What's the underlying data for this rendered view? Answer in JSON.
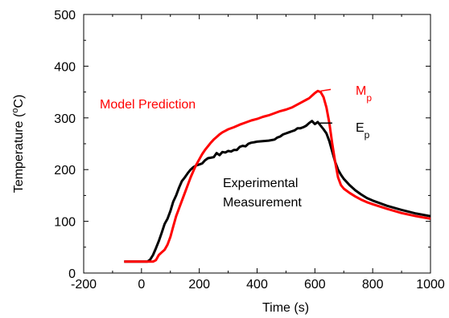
{
  "chart_data": {
    "type": "line",
    "title": "",
    "xlabel": "Time (s)",
    "ylabel_parts": {
      "prefix": "Temperature (",
      "sup": "o",
      "suffix": "C)"
    },
    "xlim": [
      -200,
      1000
    ],
    "ylim": [
      0,
      500
    ],
    "x_ticks": [
      -200,
      0,
      200,
      400,
      600,
      800,
      1000
    ],
    "y_ticks": [
      0,
      100,
      200,
      300,
      400,
      500
    ],
    "grid": false,
    "series": [
      {
        "name": "Experimental Measurement",
        "color": "#000000",
        "points": [
          [
            -60,
            22
          ],
          [
            0,
            22
          ],
          [
            20,
            22
          ],
          [
            30,
            26
          ],
          [
            40,
            35
          ],
          [
            50,
            48
          ],
          [
            60,
            62
          ],
          [
            70,
            78
          ],
          [
            80,
            95
          ],
          [
            90,
            105
          ],
          [
            100,
            120
          ],
          [
            110,
            138
          ],
          [
            120,
            150
          ],
          [
            130,
            165
          ],
          [
            140,
            178
          ],
          [
            150,
            185
          ],
          [
            160,
            193
          ],
          [
            170,
            200
          ],
          [
            180,
            205
          ],
          [
            190,
            208
          ],
          [
            200,
            210
          ],
          [
            210,
            212
          ],
          [
            220,
            218
          ],
          [
            230,
            222
          ],
          [
            240,
            223
          ],
          [
            250,
            224
          ],
          [
            260,
            232
          ],
          [
            270,
            228
          ],
          [
            280,
            234
          ],
          [
            290,
            233
          ],
          [
            300,
            236
          ],
          [
            310,
            235
          ],
          [
            320,
            238
          ],
          [
            330,
            238
          ],
          [
            340,
            244
          ],
          [
            350,
            246
          ],
          [
            360,
            245
          ],
          [
            370,
            250
          ],
          [
            380,
            252
          ],
          [
            390,
            253
          ],
          [
            400,
            254
          ],
          [
            420,
            255
          ],
          [
            440,
            256
          ],
          [
            460,
            258
          ],
          [
            470,
            262
          ],
          [
            480,
            264
          ],
          [
            490,
            268
          ],
          [
            500,
            270
          ],
          [
            510,
            272
          ],
          [
            520,
            274
          ],
          [
            530,
            276
          ],
          [
            540,
            280
          ],
          [
            550,
            280
          ],
          [
            560,
            282
          ],
          [
            570,
            285
          ],
          [
            580,
            290
          ],
          [
            590,
            294
          ],
          [
            600,
            288
          ],
          [
            610,
            292
          ],
          [
            620,
            285
          ],
          [
            630,
            278
          ],
          [
            640,
            270
          ],
          [
            650,
            255
          ],
          [
            660,
            235
          ],
          [
            670,
            215
          ],
          [
            680,
            200
          ],
          [
            690,
            190
          ],
          [
            700,
            182
          ],
          [
            720,
            170
          ],
          [
            740,
            160
          ],
          [
            760,
            152
          ],
          [
            780,
            145
          ],
          [
            800,
            140
          ],
          [
            850,
            130
          ],
          [
            900,
            122
          ],
          [
            950,
            115
          ],
          [
            1000,
            110
          ]
        ]
      },
      {
        "name": "Model Prediction",
        "color": "#ff0000",
        "points": [
          [
            -60,
            22
          ],
          [
            0,
            22
          ],
          [
            40,
            22
          ],
          [
            50,
            25
          ],
          [
            60,
            35
          ],
          [
            70,
            40
          ],
          [
            80,
            45
          ],
          [
            90,
            55
          ],
          [
            100,
            70
          ],
          [
            110,
            90
          ],
          [
            120,
            110
          ],
          [
            130,
            125
          ],
          [
            140,
            140
          ],
          [
            150,
            155
          ],
          [
            160,
            170
          ],
          [
            170,
            185
          ],
          [
            180,
            198
          ],
          [
            190,
            210
          ],
          [
            200,
            220
          ],
          [
            210,
            230
          ],
          [
            220,
            238
          ],
          [
            230,
            245
          ],
          [
            240,
            252
          ],
          [
            250,
            258
          ],
          [
            260,
            263
          ],
          [
            270,
            268
          ],
          [
            280,
            272
          ],
          [
            290,
            275
          ],
          [
            300,
            278
          ],
          [
            320,
            282
          ],
          [
            340,
            287
          ],
          [
            360,
            291
          ],
          [
            380,
            295
          ],
          [
            400,
            298
          ],
          [
            420,
            302
          ],
          [
            440,
            305
          ],
          [
            460,
            309
          ],
          [
            480,
            313
          ],
          [
            500,
            316
          ],
          [
            520,
            320
          ],
          [
            540,
            326
          ],
          [
            560,
            332
          ],
          [
            580,
            338
          ],
          [
            590,
            343
          ],
          [
            600,
            348
          ],
          [
            610,
            352
          ],
          [
            620,
            350
          ],
          [
            630,
            340
          ],
          [
            640,
            320
          ],
          [
            650,
            290
          ],
          [
            660,
            250
          ],
          [
            670,
            215
          ],
          [
            680,
            185
          ],
          [
            690,
            170
          ],
          [
            700,
            163
          ],
          [
            720,
            155
          ],
          [
            740,
            148
          ],
          [
            760,
            142
          ],
          [
            780,
            137
          ],
          [
            800,
            133
          ],
          [
            850,
            124
          ],
          [
            900,
            116
          ],
          [
            950,
            110
          ],
          [
            1000,
            105
          ]
        ]
      }
    ],
    "annotations": {
      "model_label": "Model Prediction",
      "model_color": "#ff0000",
      "experimental_label_line1": "Experimental",
      "experimental_label_line2": "Measurement",
      "mp_main": "M",
      "mp_sub": "p",
      "ep_main": "E",
      "ep_sub": "p",
      "mp_marker": [
        655,
        355
      ],
      "ep_marker": [
        660,
        290
      ]
    }
  }
}
